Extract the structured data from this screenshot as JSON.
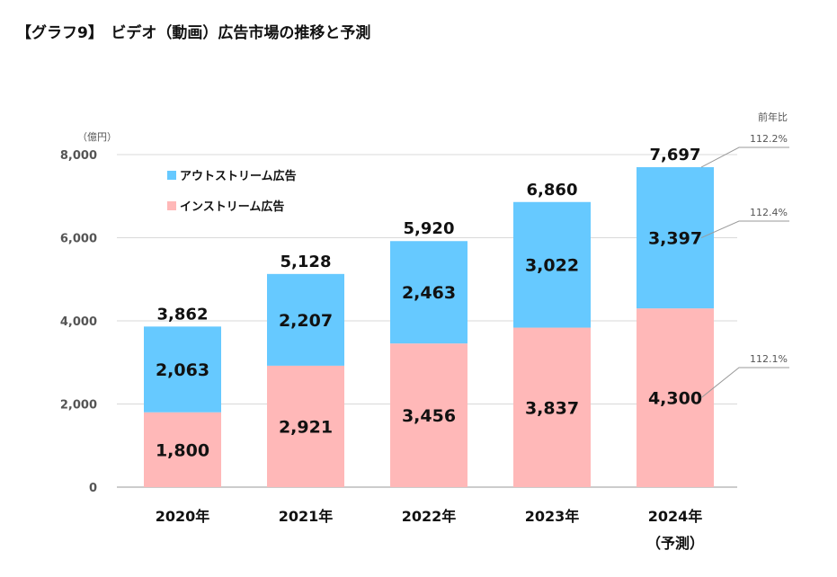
{
  "header": {
    "title": "【グラフ9】　ビデオ（動画）広告市場の推移と予測"
  },
  "chart_data": {
    "type": "bar",
    "stacked": true,
    "title": "",
    "y_unit": "（億円）",
    "ylim": [
      0,
      8000
    ],
    "yticks": [
      0,
      2000,
      4000,
      6000,
      8000
    ],
    "ytick_labels": [
      "0",
      "2,000",
      "4,000",
      "6,000",
      "8,000"
    ],
    "categories": [
      "2020年",
      "2021年",
      "2022年",
      "2023年",
      "2024年"
    ],
    "category_sublabels": [
      "",
      "",
      "",
      "",
      "（予測）"
    ],
    "series": [
      {
        "name": "インストリーム広告",
        "color": "#ffb8b8",
        "values": [
          1800,
          2921,
          3456,
          3837,
          4300
        ],
        "labels": [
          "1,800",
          "2,921",
          "3,456",
          "3,837",
          "4,300"
        ]
      },
      {
        "name": "アウトストリーム広告",
        "color": "#66c9ff",
        "values": [
          2063,
          2207,
          2463,
          3022,
          3397
        ],
        "labels": [
          "2,063",
          "2,207",
          "2,463",
          "3,022",
          "3,397"
        ]
      }
    ],
    "totals": [
      3862,
      5128,
      5920,
      6860,
      7697
    ],
    "total_labels": [
      "3,862",
      "5,128",
      "5,920",
      "6,860",
      "7,697"
    ],
    "grid": true,
    "legend": {
      "placement": "top-left",
      "items": [
        "アウトストリーム広告",
        "インストリーム広告"
      ]
    },
    "yoy": {
      "heading": "前年比",
      "total": "112.2%",
      "outstream": "112.4%",
      "instream": "112.1%"
    }
  }
}
